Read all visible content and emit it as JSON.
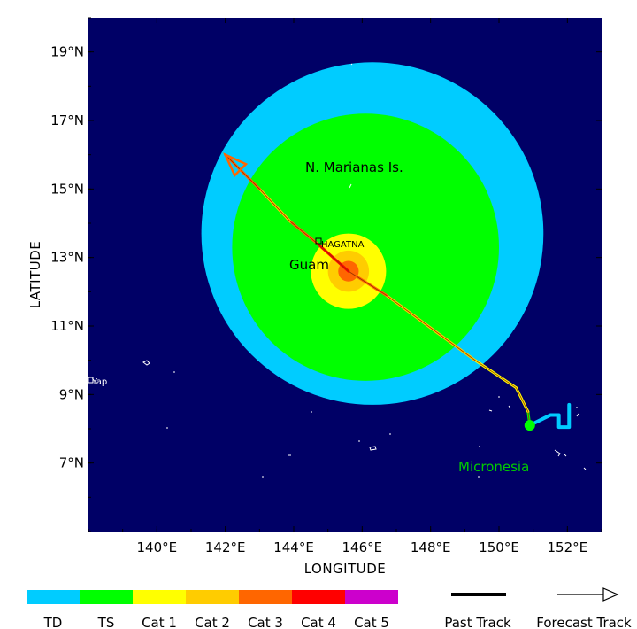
{
  "axes": {
    "xlabel": "LONGITUDE",
    "ylabel": "LATITUDE",
    "x_range": [
      138.0,
      153.0
    ],
    "y_range": [
      5.0,
      20.0
    ],
    "x_ticks": [
      {
        "value": 140,
        "label": "140°E"
      },
      {
        "value": 142,
        "label": "142°E"
      },
      {
        "value": 144,
        "label": "144°E"
      },
      {
        "value": 146,
        "label": "146°E"
      },
      {
        "value": 148,
        "label": "148°E"
      },
      {
        "value": 150,
        "label": "150°E"
      },
      {
        "value": 152,
        "label": "152°E"
      }
    ],
    "y_ticks": [
      {
        "value": 7,
        "label": "7°N"
      },
      {
        "value": 9,
        "label": "9°N"
      },
      {
        "value": 11,
        "label": "11°N"
      },
      {
        "value": 13,
        "label": "13°N"
      },
      {
        "value": 15,
        "label": "15°N"
      },
      {
        "value": 17,
        "label": "17°N"
      },
      {
        "value": 19,
        "label": "19°N"
      }
    ]
  },
  "colors": {
    "ocean": "#000066",
    "td": "#00ccff",
    "ts": "#00ff00",
    "cat1": "#ffff00",
    "cat2": "#ffcc00",
    "cat3": "#ff6600",
    "cat4": "#ff0000",
    "cat5": "#cc00cc"
  },
  "wind_field": {
    "center": {
      "lon": 145.6,
      "lat": 12.6
    },
    "td_ring": {
      "lon": 146.3,
      "lat": 13.7,
      "radius_deg": 5.0
    },
    "ts_ring": {
      "lon": 146.1,
      "lat": 13.3,
      "radius_deg": 3.9
    },
    "cat1_radius_deg": 1.1,
    "cat2_radius_deg": 0.6,
    "cat3_radius_deg": 0.3
  },
  "past_track": [
    {
      "lon": 152.05,
      "lat": 8.7
    },
    {
      "lon": 152.05,
      "lat": 8.05
    },
    {
      "lon": 151.75,
      "lat": 8.05
    },
    {
      "lon": 151.75,
      "lat": 8.4
    },
    {
      "lon": 151.5,
      "lat": 8.4
    },
    {
      "lon": 151.1,
      "lat": 8.2
    },
    {
      "lon": 150.9,
      "lat": 8.1
    }
  ],
  "forecast_track": [
    {
      "lon": 150.9,
      "lat": 8.1
    },
    {
      "lon": 150.85,
      "lat": 8.5
    },
    {
      "lon": 150.5,
      "lat": 9.2
    },
    {
      "lon": 149.3,
      "lat": 10.0
    },
    {
      "lon": 148.2,
      "lat": 10.8
    },
    {
      "lon": 146.7,
      "lat": 11.9
    },
    {
      "lon": 145.6,
      "lat": 12.6
    },
    {
      "lon": 144.7,
      "lat": 13.4
    },
    {
      "lon": 143.9,
      "lat": 14.05
    },
    {
      "lon": 143.0,
      "lat": 15.0
    },
    {
      "lon": 142.0,
      "lat": 16.0
    }
  ],
  "current_position": {
    "lon": 150.9,
    "lat": 8.1
  },
  "labels": {
    "marianas": "N. Marianas Is.",
    "guam": "Guam",
    "hagatna": "HAGATNA",
    "yap": "Yap",
    "micronesia": "Micronesia"
  },
  "legend": {
    "categories": [
      {
        "label": "TD",
        "color": "#00ccff"
      },
      {
        "label": "TS",
        "color": "#00ff00"
      },
      {
        "label": "Cat 1",
        "color": "#ffff00"
      },
      {
        "label": "Cat 2",
        "color": "#ffcc00"
      },
      {
        "label": "Cat 3",
        "color": "#ff6600"
      },
      {
        "label": "Cat 4",
        "color": "#ff0000"
      },
      {
        "label": "Cat 5",
        "color": "#cc00cc"
      }
    ],
    "past_track_label": "Past Track",
    "forecast_track_label": "Forecast Track"
  }
}
